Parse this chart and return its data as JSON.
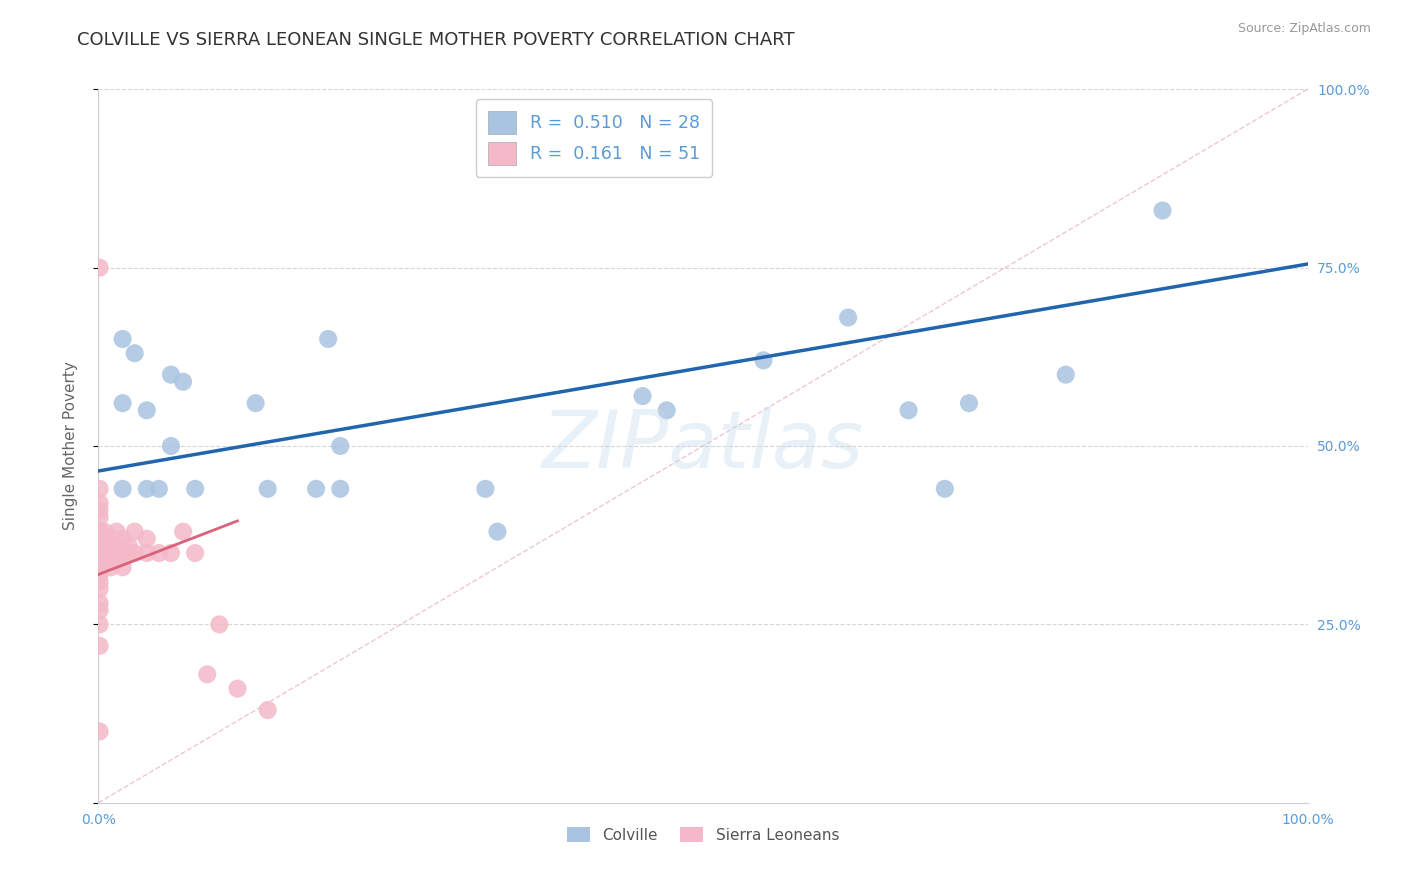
{
  "title": "COLVILLE VS SIERRA LEONEAN SINGLE MOTHER POVERTY CORRELATION CHART",
  "source": "Source: ZipAtlas.com",
  "ylabel": "Single Mother Poverty",
  "colville_R": 0.51,
  "colville_N": 28,
  "sierra_R": 0.161,
  "sierra_N": 51,
  "colville_color": "#a8c4e0",
  "colville_line_color": "#2166ac",
  "sierra_color": "#f4b8c8",
  "sierra_line_color": "#d9637a",
  "watermark_text": "ZIPatlas",
  "colville_x": [
    0.02,
    0.02,
    0.03,
    0.04,
    0.05,
    0.06,
    0.07,
    0.08,
    0.13,
    0.14,
    0.18,
    0.19,
    0.32,
    0.33,
    0.45,
    0.47,
    0.55,
    0.62,
    0.67,
    0.7,
    0.72,
    0.8,
    0.88,
    0.02,
    0.04,
    0.06,
    0.2,
    0.2
  ],
  "colville_y": [
    0.65,
    0.56,
    0.63,
    0.55,
    0.44,
    0.6,
    0.59,
    0.44,
    0.56,
    0.44,
    0.44,
    0.65,
    0.44,
    0.38,
    0.57,
    0.55,
    0.62,
    0.68,
    0.55,
    0.44,
    0.56,
    0.6,
    0.83,
    0.44,
    0.44,
    0.5,
    0.5,
    0.44
  ],
  "sierra_x": [
    0.001,
    0.001,
    0.001,
    0.001,
    0.001,
    0.001,
    0.001,
    0.001,
    0.001,
    0.001,
    0.001,
    0.001,
    0.001,
    0.001,
    0.001,
    0.001,
    0.001,
    0.001,
    0.001,
    0.001,
    0.003,
    0.004,
    0.005,
    0.005,
    0.006,
    0.007,
    0.008,
    0.01,
    0.01,
    0.01,
    0.015,
    0.015,
    0.015,
    0.02,
    0.02,
    0.02,
    0.025,
    0.025,
    0.03,
    0.03,
    0.04,
    0.04,
    0.05,
    0.06,
    0.07,
    0.08,
    0.09,
    0.1,
    0.115,
    0.14,
    0.001
  ],
  "sierra_y": [
    0.33,
    0.35,
    0.37,
    0.38,
    0.4,
    0.41,
    0.28,
    0.3,
    0.32,
    0.22,
    0.35,
    0.38,
    0.42,
    0.44,
    0.36,
    0.34,
    0.31,
    0.27,
    0.25,
    0.75,
    0.36,
    0.34,
    0.36,
    0.38,
    0.35,
    0.37,
    0.36,
    0.37,
    0.35,
    0.33,
    0.36,
    0.38,
    0.34,
    0.35,
    0.37,
    0.33,
    0.36,
    0.35,
    0.38,
    0.35,
    0.37,
    0.35,
    0.35,
    0.35,
    0.38,
    0.35,
    0.18,
    0.25,
    0.16,
    0.13,
    0.1
  ],
  "background_color": "#ffffff",
  "grid_color": "#cccccc",
  "title_fontsize": 13,
  "axis_label_fontsize": 11,
  "tick_fontsize": 10,
  "right_tick_color": "#5b9bd5",
  "xlim": [
    0.0,
    1.0
  ],
  "ylim": [
    0.0,
    1.0
  ],
  "yticks": [
    0.0,
    0.25,
    0.5,
    0.75,
    1.0
  ],
  "ytick_labels_right": [
    "",
    "25.0%",
    "50.0%",
    "75.0%",
    "100.0%"
  ],
  "xticks": [
    0.0,
    0.25,
    0.5,
    0.75,
    1.0
  ],
  "xtick_labels": [
    "0.0%",
    "",
    "",
    "",
    "100.0%"
  ],
  "blue_line_x0": 0.0,
  "blue_line_y0": 0.465,
  "blue_line_x1": 1.0,
  "blue_line_y1": 0.755,
  "pink_line_x0": 0.0,
  "pink_line_y0": 0.32,
  "pink_line_x1": 0.115,
  "pink_line_y1": 0.395
}
